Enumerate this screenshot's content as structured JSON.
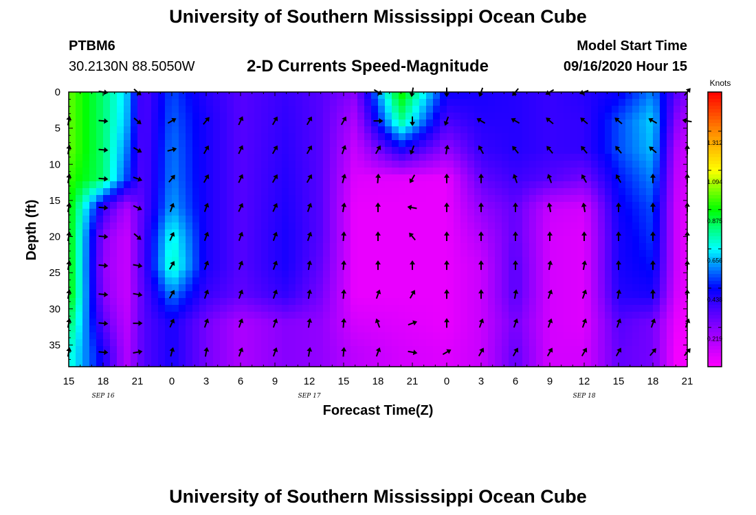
{
  "header": {
    "title": "University of Southern Mississippi Ocean Cube",
    "station_id": "PTBM6",
    "station_coords": "30.2130N 88.5050W",
    "plot_title": "2-D Currents Speed-Magnitude",
    "model_start_label": "Model Start Time",
    "model_start_value": "09/16/2020 Hour 15"
  },
  "footer": {
    "title": "University of Southern Mississippi Ocean Cube"
  },
  "chart_data": {
    "type": "heatmap",
    "xlabel": "Forecast Time(Z)",
    "ylabel": "Depth (ft)",
    "x_tick_labels": [
      "15",
      "18",
      "21",
      "0",
      "3",
      "6",
      "9",
      "12",
      "15",
      "18",
      "21",
      "0",
      "3",
      "6",
      "9",
      "12",
      "15",
      "18",
      "21"
    ],
    "x_range_hours_since_start": [
      0,
      54
    ],
    "date_labels": [
      {
        "label": "SEP 16",
        "at_tick": 1
      },
      {
        "label": "SEP 17",
        "at_tick": 7
      },
      {
        "label": "SEP 18",
        "at_tick": 15
      }
    ],
    "y_ticks": [
      0,
      5,
      10,
      15,
      20,
      25,
      30,
      35
    ],
    "ylim": [
      0,
      38
    ],
    "y_inverted": true,
    "colorbar": {
      "label": "Knots",
      "ticks": [
        "1.312",
        "1.094",
        "0.875",
        "0.656",
        "0.438",
        "0.219"
      ],
      "tick_values": [
        1.312,
        1.094,
        0.875,
        0.656,
        0.438,
        0.219
      ],
      "range": [
        0,
        1.53
      ],
      "colors": [
        "#ff00ff",
        "#8800ff",
        "#0000ff",
        "#00ffff",
        "#00ff00",
        "#ffff00",
        "#ff8800",
        "#ff0000"
      ]
    },
    "arrow_depths_ft": [
      0,
      4,
      8,
      12,
      16,
      20,
      24,
      28,
      32,
      36
    ],
    "arrow_times_hours": [
      0,
      3,
      6,
      9,
      12,
      15,
      18,
      21,
      24,
      27,
      30,
      33,
      36,
      39,
      42,
      45,
      48,
      51,
      54
    ],
    "speed_field_knots": {
      "columns": [
        {
          "hours": 0,
          "speeds": [
            0.96,
            0.96,
            0.96,
            0.92,
            0.9,
            0.9,
            0.9,
            0.9,
            0.8,
            0.7
          ]
        },
        {
          "hours": 3,
          "speeds": [
            0.78,
            0.78,
            0.78,
            0.78,
            0.36,
            0.22,
            0.2,
            0.22,
            0.3,
            0.4
          ]
        },
        {
          "hours": 5,
          "speeds": [
            0.62,
            0.6,
            0.55,
            0.5,
            0.15,
            0.1,
            0.1,
            0.1,
            0.12,
            0.14
          ]
        },
        {
          "hours": 6.5,
          "speeds": [
            0.3,
            0.3,
            0.3,
            0.3,
            0.3,
            0.32,
            0.32,
            0.3,
            0.3,
            0.3
          ]
        },
        {
          "hours": 9,
          "speeds": [
            0.5,
            0.52,
            0.54,
            0.55,
            0.58,
            0.68,
            0.72,
            0.55,
            0.4,
            0.4
          ]
        },
        {
          "hours": 12,
          "speeds": [
            0.38,
            0.4,
            0.4,
            0.4,
            0.4,
            0.4,
            0.4,
            0.35,
            0.25,
            0.25
          ]
        },
        {
          "hours": 15,
          "speeds": [
            0.3,
            0.3,
            0.3,
            0.3,
            0.3,
            0.3,
            0.3,
            0.28,
            0.15,
            0.15
          ]
        },
        {
          "hours": 19,
          "speeds": [
            0.35,
            0.36,
            0.37,
            0.38,
            0.39,
            0.4,
            0.4,
            0.36,
            0.22,
            0.22
          ]
        },
        {
          "hours": 22,
          "speeds": [
            0.3,
            0.3,
            0.3,
            0.3,
            0.3,
            0.3,
            0.28,
            0.25,
            0.2,
            0.2
          ]
        },
        {
          "hours": 25,
          "speeds": [
            0.22,
            0.15,
            0.1,
            0.06,
            0.04,
            0.04,
            0.04,
            0.04,
            0.08,
            0.12
          ]
        },
        {
          "hours": 29,
          "speeds": [
            0.9,
            0.75,
            0.4,
            0.05,
            0.04,
            0.04,
            0.04,
            0.04,
            0.06,
            0.08
          ]
        },
        {
          "hours": 33,
          "speeds": [
            0.42,
            0.32,
            0.2,
            0.04,
            0.04,
            0.04,
            0.04,
            0.04,
            0.04,
            0.06
          ]
        },
        {
          "hours": 36,
          "speeds": [
            0.4,
            0.38,
            0.35,
            0.28,
            0.2,
            0.14,
            0.1,
            0.1,
            0.1,
            0.1
          ]
        },
        {
          "hours": 39,
          "speeds": [
            0.38,
            0.38,
            0.38,
            0.34,
            0.28,
            0.28,
            0.3,
            0.3,
            0.25,
            0.28
          ]
        },
        {
          "hours": 42,
          "speeds": [
            0.35,
            0.35,
            0.35,
            0.3,
            0.1,
            0.08,
            0.08,
            0.08,
            0.08,
            0.08
          ]
        },
        {
          "hours": 45,
          "speeds": [
            0.38,
            0.36,
            0.36,
            0.25,
            0.08,
            0.06,
            0.06,
            0.06,
            0.06,
            0.08
          ]
        },
        {
          "hours": 48,
          "speeds": [
            0.42,
            0.5,
            0.5,
            0.45,
            0.42,
            0.4,
            0.4,
            0.38,
            0.3,
            0.28
          ]
        },
        {
          "hours": 51,
          "speeds": [
            0.55,
            0.62,
            0.6,
            0.55,
            0.5,
            0.48,
            0.45,
            0.4,
            0.25,
            0.25
          ]
        },
        {
          "hours": 53,
          "speeds": [
            0.3,
            0.22,
            0.15,
            0.12,
            0.1,
            0.1,
            0.1,
            0.08,
            0.04,
            0.02
          ]
        },
        {
          "hours": 54,
          "speeds": [
            0.25,
            0.15,
            0.1,
            0.08,
            0.06,
            0.04,
            0.04,
            0.04,
            0.02,
            0.02
          ]
        }
      ]
    },
    "direction_field_degrees": {
      "note_units": "direction toward, degrees clockwise from north",
      "columns": [
        {
          "hours": 0,
          "dirs": [
            null,
            10,
            10,
            10,
            10,
            10,
            10,
            10,
            10,
            10
          ]
        },
        {
          "hours": 3,
          "dirs": [
            100,
            95,
            95,
            95,
            95,
            95,
            95,
            95,
            95,
            95
          ]
        },
        {
          "hours": 6,
          "dirs": [
            130,
            130,
            120,
            110,
            115,
            130,
            100,
            100,
            90,
            80
          ]
        },
        {
          "hours": 9,
          "dirs": [
            null,
            60,
            75,
            40,
            20,
            25,
            30,
            30,
            25,
            15
          ]
        },
        {
          "hours": 12,
          "dirs": [
            null,
            40,
            30,
            30,
            20,
            20,
            20,
            20,
            20,
            10
          ]
        },
        {
          "hours": 15,
          "dirs": [
            null,
            25,
            25,
            25,
            25,
            20,
            20,
            20,
            20,
            20
          ]
        },
        {
          "hours": 18,
          "dirs": [
            null,
            30,
            30,
            30,
            25,
            20,
            20,
            20,
            20,
            20
          ]
        },
        {
          "hours": 21,
          "dirs": [
            null,
            30,
            30,
            30,
            20,
            20,
            10,
            10,
            10,
            10
          ]
        },
        {
          "hours": 24,
          "dirs": [
            null,
            30,
            20,
            15,
            10,
            5,
            5,
            5,
            5,
            5
          ]
        },
        {
          "hours": 27,
          "dirs": [
            120,
            90,
            30,
            5,
            0,
            0,
            0,
            20,
            340,
            20
          ]
        },
        {
          "hours": 30,
          "dirs": [
            190,
            180,
            200,
            210,
            280,
            320,
            0,
            30,
            70,
            100
          ]
        },
        {
          "hours": 33,
          "dirs": [
            180,
            200,
            10,
            0,
            0,
            0,
            0,
            0,
            0,
            60
          ]
        },
        {
          "hours": 36,
          "dirs": [
            200,
            300,
            330,
            0,
            0,
            0,
            0,
            0,
            20,
            30
          ]
        },
        {
          "hours": 39,
          "dirs": [
            220,
            300,
            320,
            340,
            0,
            0,
            0,
            10,
            20,
            30
          ]
        },
        {
          "hours": 42,
          "dirs": [
            240,
            310,
            320,
            340,
            350,
            0,
            10,
            20,
            20,
            30
          ]
        },
        {
          "hours": 45,
          "dirs": [
            250,
            310,
            320,
            330,
            350,
            0,
            10,
            20,
            20,
            30
          ]
        },
        {
          "hours": 48,
          "dirs": [
            null,
            310,
            320,
            330,
            0,
            0,
            0,
            10,
            20,
            30
          ]
        },
        {
          "hours": 51,
          "dirs": [
            null,
            300,
            310,
            0,
            0,
            0,
            0,
            0,
            20,
            40
          ]
        },
        {
          "hours": 54,
          "dirs": [
            40,
            280,
            0,
            0,
            0,
            0,
            0,
            0,
            20,
            40
          ]
        }
      ]
    }
  }
}
